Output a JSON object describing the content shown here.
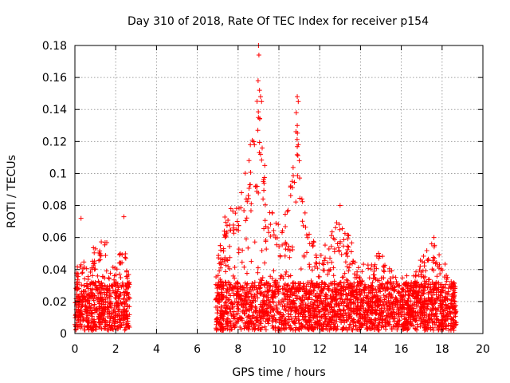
{
  "chart_data": {
    "type": "scatter",
    "title": "Day 310 of 2018, Rate Of TEC Index for receiver p154",
    "xlabel": "GPS time / hours",
    "ylabel": "ROTI / TECUs",
    "xlim": [
      0,
      20
    ],
    "ylim": [
      0,
      0.18
    ],
    "xticks": [
      "0",
      "2",
      "4",
      "6",
      "8",
      "10",
      "12",
      "14",
      "16",
      "18",
      "20"
    ],
    "yticks": [
      "0",
      "0.02",
      "0.04",
      "0.06",
      "0.08",
      "0.1",
      "0.12",
      "0.14",
      "0.16",
      "0.18"
    ],
    "grid": true,
    "marker": "+",
    "color": "#ff0000",
    "series": [
      {
        "name": "ROTI",
        "segments": [
          {
            "x_start": 0.0,
            "x_end": 2.7
          },
          {
            "x_start": 6.9,
            "x_end": 18.7
          }
        ],
        "envelope": [
          {
            "x": 0.0,
            "y": 0.035
          },
          {
            "x": 0.3,
            "y": 0.052
          },
          {
            "x": 0.6,
            "y": 0.04
          },
          {
            "x": 1.0,
            "y": 0.058
          },
          {
            "x": 1.5,
            "y": 0.062
          },
          {
            "x": 2.0,
            "y": 0.04
          },
          {
            "x": 2.4,
            "y": 0.063
          },
          {
            "x": 2.7,
            "y": 0.03
          },
          {
            "x": 6.9,
            "y": 0.04
          },
          {
            "x": 7.4,
            "y": 0.08
          },
          {
            "x": 8.0,
            "y": 0.08
          },
          {
            "x": 8.5,
            "y": 0.11
          },
          {
            "x": 9.0,
            "y": 0.158
          },
          {
            "x": 9.5,
            "y": 0.08
          },
          {
            "x": 10.0,
            "y": 0.07
          },
          {
            "x": 10.5,
            "y": 0.08
          },
          {
            "x": 10.9,
            "y": 0.148
          },
          {
            "x": 11.3,
            "y": 0.085
          },
          {
            "x": 12.0,
            "y": 0.05
          },
          {
            "x": 13.0,
            "y": 0.075
          },
          {
            "x": 13.5,
            "y": 0.06
          },
          {
            "x": 14.0,
            "y": 0.04
          },
          {
            "x": 14.8,
            "y": 0.06
          },
          {
            "x": 15.5,
            "y": 0.04
          },
          {
            "x": 16.5,
            "y": 0.035
          },
          {
            "x": 17.5,
            "y": 0.06
          },
          {
            "x": 18.0,
            "y": 0.05
          },
          {
            "x": 18.7,
            "y": 0.03
          }
        ],
        "highlights": [
          {
            "x": 0.3,
            "y": 0.072
          },
          {
            "x": 2.4,
            "y": 0.073
          },
          {
            "x": 8.6,
            "y": 0.118
          },
          {
            "x": 8.8,
            "y": 0.118
          },
          {
            "x": 9.0,
            "y": 0.18
          },
          {
            "x": 9.02,
            "y": 0.174
          },
          {
            "x": 8.98,
            "y": 0.158
          },
          {
            "x": 9.05,
            "y": 0.152
          },
          {
            "x": 9.1,
            "y": 0.148
          },
          {
            "x": 9.15,
            "y": 0.145
          },
          {
            "x": 9.1,
            "y": 0.112
          },
          {
            "x": 10.9,
            "y": 0.148
          },
          {
            "x": 10.95,
            "y": 0.145
          },
          {
            "x": 10.85,
            "y": 0.138
          },
          {
            "x": 10.9,
            "y": 0.13
          },
          {
            "x": 10.95,
            "y": 0.118
          },
          {
            "x": 11.0,
            "y": 0.108
          },
          {
            "x": 13.0,
            "y": 0.08
          },
          {
            "x": 17.6,
            "y": 0.06
          }
        ]
      }
    ]
  }
}
